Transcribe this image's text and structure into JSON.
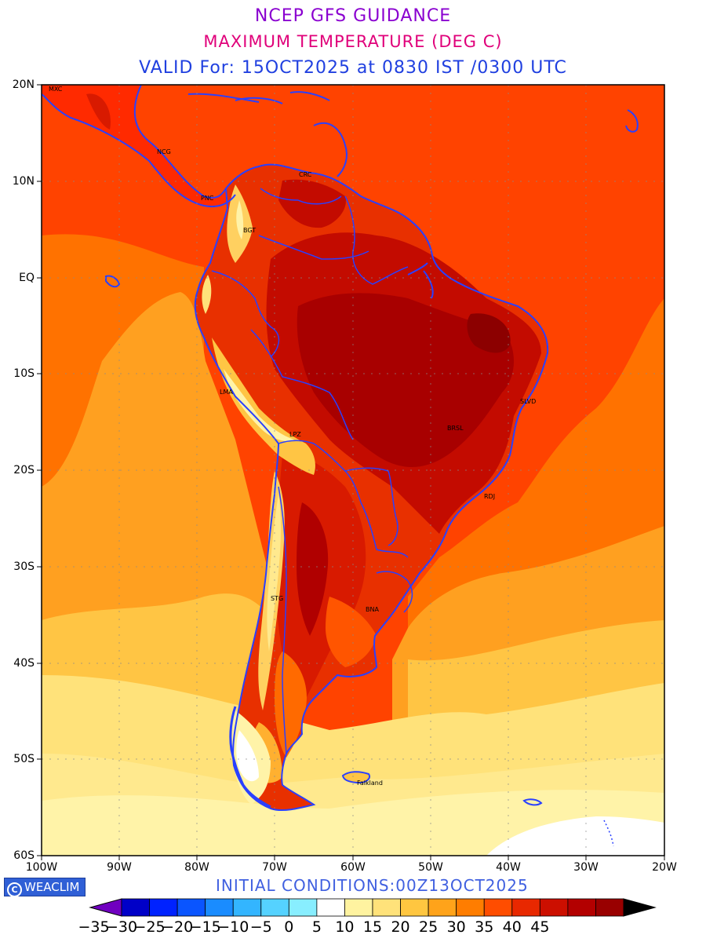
{
  "titles": {
    "line1": "NCEP GFS GUIDANCE",
    "line2": "MAXIMUM TEMPERATURE (DEG C)",
    "line3": "VALID For: 15OCT2025 at 0830 IST /0300 UTC"
  },
  "colors": {
    "title1": "#8a00d0",
    "title2": "#e0007a",
    "title3": "#2040e0",
    "coastline": "#2a40ff",
    "footer": "#4060e0"
  },
  "map": {
    "lat_labels": [
      "20N",
      "10N",
      "EQ",
      "10S",
      "20S",
      "30S",
      "40S",
      "50S",
      "60S"
    ],
    "lon_labels": [
      "100W",
      "90W",
      "80W",
      "70W",
      "60W",
      "50W",
      "40W",
      "30W",
      "20W"
    ],
    "cities": [
      "MXC",
      "NCG",
      "CRC",
      "PNC",
      "BGT",
      "LMA",
      "LPZ",
      "SLVD",
      "BRSL",
      "RDJ",
      "STG",
      "BNA",
      "Falkland"
    ]
  },
  "footer": {
    "logo_text": "WEACLIM",
    "logo_icon": "copyright-c-icon",
    "initial_conditions": "INITIAL CONDITIONS:00Z13OCT2025"
  },
  "colorbar": {
    "labels": [
      "-35",
      "-30",
      "-25",
      "-20",
      "-15",
      "-10",
      "-5",
      "0",
      "5",
      "10",
      "15",
      "20",
      "25",
      "30",
      "35",
      "40",
      "45"
    ],
    "colors": [
      "#7000c0",
      "#0000c8",
      "#0022ff",
      "#0a55ff",
      "#1a8cff",
      "#33b5ff",
      "#55d2ff",
      "#88eeff",
      "#ffffff",
      "#fff3a0",
      "#ffe27a",
      "#ffc640",
      "#ffa31a",
      "#ff7d00",
      "#ff4d00",
      "#e82800",
      "#cc0f00",
      "#b30000",
      "#990000",
      "#000000"
    ]
  }
}
